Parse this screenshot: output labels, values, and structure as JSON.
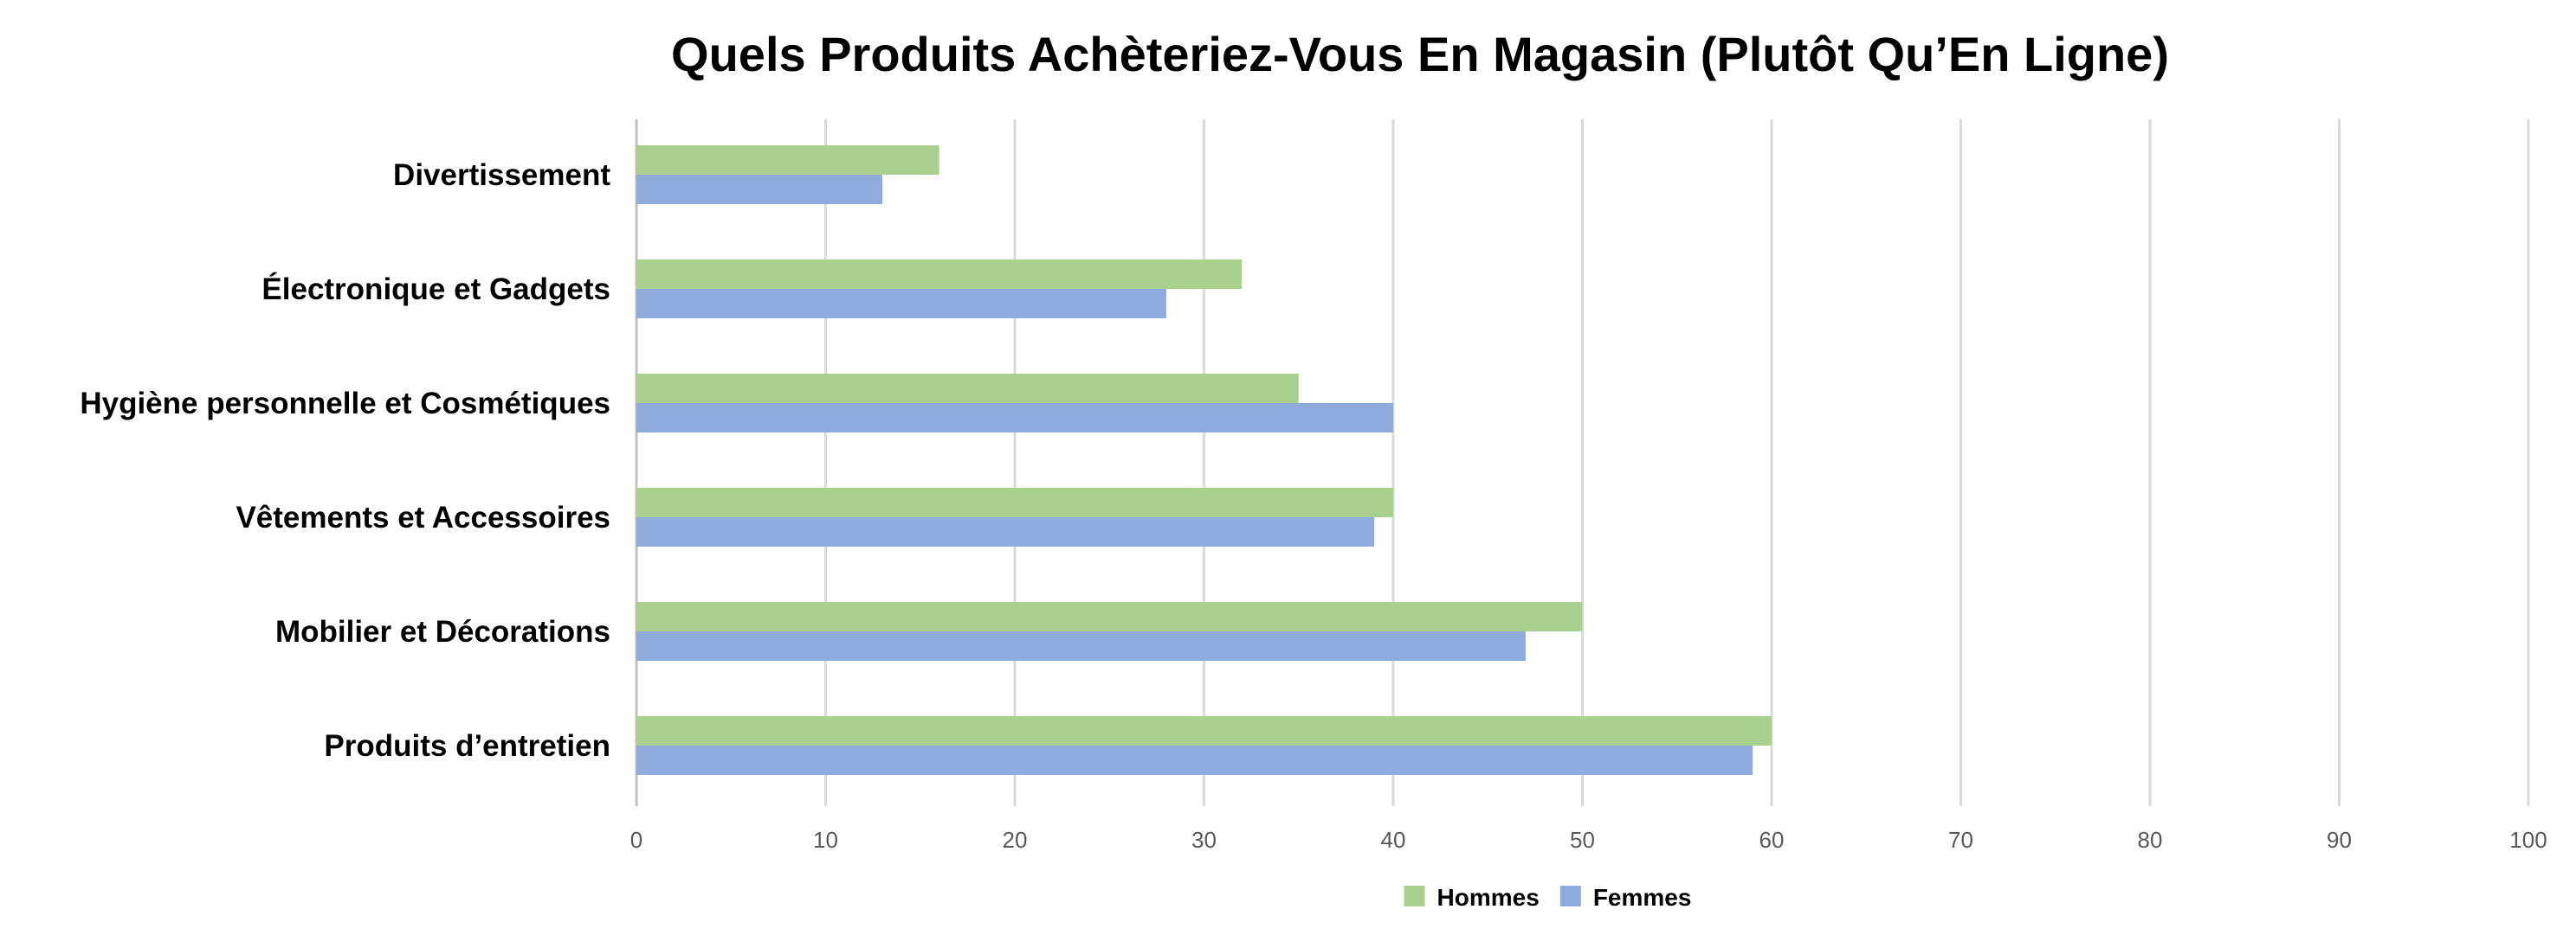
{
  "chart_data": {
    "type": "bar",
    "orientation": "horizontal",
    "title": "Quels Produits Achèteriez-Vous En Magasin (Plutôt Qu’En Ligne)",
    "xlabel": "",
    "ylabel": "",
    "categories": [
      "Divertissement",
      "Électronique et Gadgets",
      "Hygiène personnelle et Cosmétiques",
      "Vêtements et Accessoires",
      "Mobilier et Décorations",
      "Produits d’entretien"
    ],
    "series": [
      {
        "name": "Hommes",
        "color": "#a9d18e",
        "values": [
          16,
          32,
          35,
          40,
          50,
          60
        ]
      },
      {
        "name": "Femmes",
        "color": "#8faadc",
        "values": [
          13,
          28,
          40,
          39,
          47,
          59
        ]
      }
    ],
    "xlim": [
      0,
      100
    ],
    "xticks": [
      "0",
      "10",
      "20",
      "30",
      "40",
      "50",
      "60",
      "70",
      "80",
      "90",
      "100"
    ],
    "grid": true,
    "legend_position": "bottom"
  }
}
